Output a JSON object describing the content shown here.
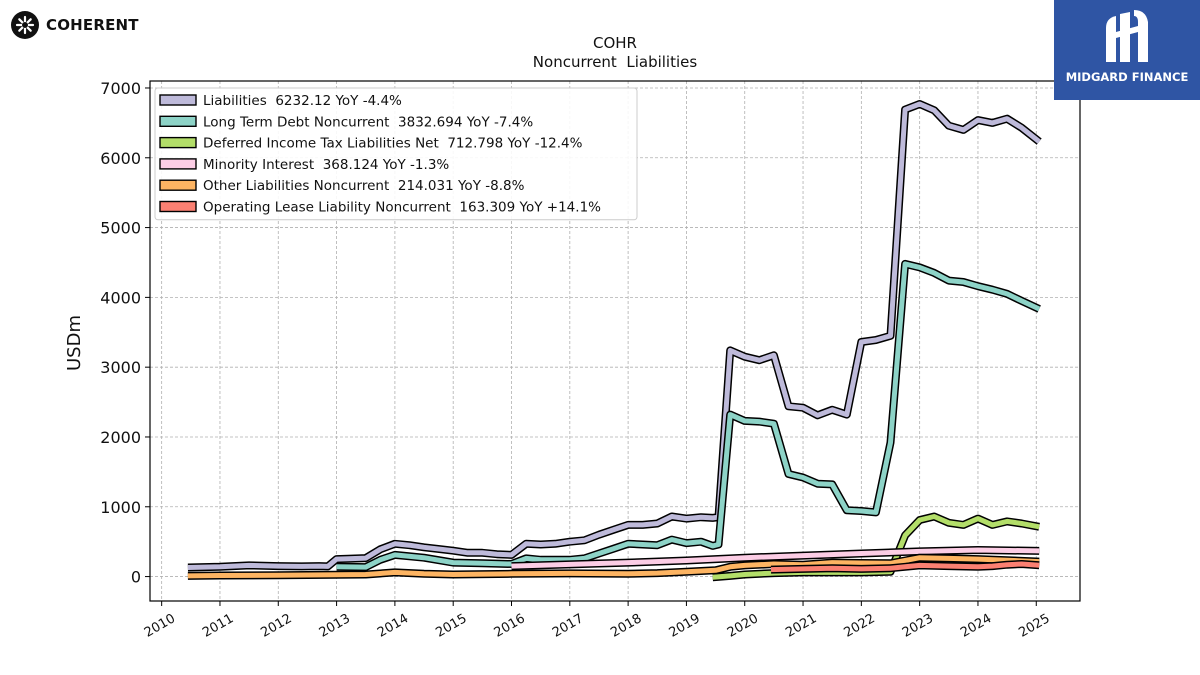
{
  "brand": {
    "left_logo_text": "COHERENT",
    "right_logo_text": "MIDGARD FINANCE",
    "right_bg": "#2f55a4"
  },
  "chart_data": {
    "type": "line",
    "title": "COHR",
    "subtitle": "Noncurrent  Liabilities",
    "ylabel": "USDm",
    "xlabel": "",
    "xlim": [
      2009.8,
      2025.75
    ],
    "ylim": [
      -350,
      7100
    ],
    "yticks": [
      0,
      1000,
      2000,
      3000,
      4000,
      5000,
      6000,
      7000
    ],
    "xticks": [
      2010,
      2011,
      2012,
      2013,
      2014,
      2015,
      2016,
      2017,
      2018,
      2019,
      2020,
      2021,
      2022,
      2023,
      2024,
      2025
    ],
    "grid": true,
    "legend_position": "top-left",
    "series": [
      {
        "name": "Liabilities",
        "legend_label": "Liabilities  6232.12 YoY -4.4%",
        "color": "#bebada",
        "points": [
          [
            2010.45,
            130
          ],
          [
            2011.0,
            140
          ],
          [
            2011.5,
            160
          ],
          [
            2012.0,
            150
          ],
          [
            2012.4,
            145
          ],
          [
            2012.7,
            150
          ],
          [
            2012.85,
            145
          ],
          [
            2013.0,
            250
          ],
          [
            2013.2,
            255
          ],
          [
            2013.5,
            265
          ],
          [
            2013.75,
            390
          ],
          [
            2014.0,
            470
          ],
          [
            2014.25,
            450
          ],
          [
            2014.5,
            420
          ],
          [
            2014.8,
            390
          ],
          [
            2015.0,
            370
          ],
          [
            2015.25,
            340
          ],
          [
            2015.5,
            340
          ],
          [
            2015.75,
            320
          ],
          [
            2016.0,
            310
          ],
          [
            2016.25,
            470
          ],
          [
            2016.5,
            460
          ],
          [
            2016.75,
            470
          ],
          [
            2017.0,
            500
          ],
          [
            2017.25,
            520
          ],
          [
            2017.5,
            600
          ],
          [
            2017.75,
            670
          ],
          [
            2018.0,
            740
          ],
          [
            2018.25,
            740
          ],
          [
            2018.5,
            760
          ],
          [
            2018.75,
            860
          ],
          [
            2019.0,
            830
          ],
          [
            2019.25,
            850
          ],
          [
            2019.45,
            840
          ],
          [
            2019.55,
            850
          ],
          [
            2019.75,
            3240
          ],
          [
            2020.0,
            3150
          ],
          [
            2020.25,
            3100
          ],
          [
            2020.5,
            3170
          ],
          [
            2020.75,
            2440
          ],
          [
            2021.0,
            2420
          ],
          [
            2021.25,
            2310
          ],
          [
            2021.5,
            2390
          ],
          [
            2021.75,
            2320
          ],
          [
            2022.0,
            3360
          ],
          [
            2022.25,
            3390
          ],
          [
            2022.5,
            3450
          ],
          [
            2022.75,
            6690
          ],
          [
            2023.0,
            6770
          ],
          [
            2023.25,
            6680
          ],
          [
            2023.5,
            6460
          ],
          [
            2023.75,
            6400
          ],
          [
            2024.0,
            6540
          ],
          [
            2024.25,
            6500
          ],
          [
            2024.5,
            6560
          ],
          [
            2024.75,
            6430
          ],
          [
            2025.05,
            6232
          ]
        ]
      },
      {
        "name": "Long Term Debt Noncurrent",
        "legend_label": "Long Term Debt Noncurrent  3832.694 YoY -7.4%",
        "color": "#8dd3c7",
        "points": [
          [
            2013.0,
            140
          ],
          [
            2013.5,
            135
          ],
          [
            2013.75,
            240
          ],
          [
            2014.0,
            310
          ],
          [
            2014.5,
            270
          ],
          [
            2015.0,
            200
          ],
          [
            2015.5,
            190
          ],
          [
            2016.0,
            180
          ],
          [
            2016.25,
            260
          ],
          [
            2016.5,
            240
          ],
          [
            2017.0,
            240
          ],
          [
            2017.25,
            260
          ],
          [
            2017.5,
            330
          ],
          [
            2017.75,
            400
          ],
          [
            2018.0,
            470
          ],
          [
            2018.25,
            460
          ],
          [
            2018.5,
            450
          ],
          [
            2018.75,
            530
          ],
          [
            2019.0,
            480
          ],
          [
            2019.25,
            500
          ],
          [
            2019.45,
            440
          ],
          [
            2019.55,
            460
          ],
          [
            2019.75,
            2320
          ],
          [
            2020.0,
            2230
          ],
          [
            2020.25,
            2220
          ],
          [
            2020.5,
            2190
          ],
          [
            2020.75,
            1470
          ],
          [
            2021.0,
            1420
          ],
          [
            2021.25,
            1330
          ],
          [
            2021.5,
            1320
          ],
          [
            2021.75,
            950
          ],
          [
            2022.0,
            940
          ],
          [
            2022.25,
            920
          ],
          [
            2022.5,
            1920
          ],
          [
            2022.75,
            4480
          ],
          [
            2023.0,
            4430
          ],
          [
            2023.25,
            4350
          ],
          [
            2023.5,
            4240
          ],
          [
            2023.75,
            4220
          ],
          [
            2024.0,
            4160
          ],
          [
            2024.25,
            4110
          ],
          [
            2024.5,
            4050
          ],
          [
            2024.75,
            3950
          ],
          [
            2025.05,
            3833
          ]
        ]
      },
      {
        "name": "Deferred Income Tax Liabilities Net",
        "legend_label": "Deferred Income Tax Liabilities Net  712.798 YoY -12.4%",
        "color": "#b3de69",
        "points": [
          [
            2019.45,
            -10
          ],
          [
            2019.75,
            10
          ],
          [
            2020.0,
            30
          ],
          [
            2020.5,
            50
          ],
          [
            2021.0,
            60
          ],
          [
            2021.5,
            60
          ],
          [
            2022.0,
            60
          ],
          [
            2022.5,
            70
          ],
          [
            2022.75,
            590
          ],
          [
            2023.0,
            810
          ],
          [
            2023.25,
            860
          ],
          [
            2023.5,
            770
          ],
          [
            2023.75,
            740
          ],
          [
            2024.0,
            830
          ],
          [
            2024.25,
            740
          ],
          [
            2024.5,
            790
          ],
          [
            2024.75,
            760
          ],
          [
            2025.05,
            713
          ]
        ]
      },
      {
        "name": "Minority Interest",
        "legend_label": "Minority Interest  368.124 YoY -1.3%",
        "color": "#fccde5",
        "points": [
          [
            2016.0,
            150
          ],
          [
            2017.0,
            175
          ],
          [
            2018.0,
            200
          ],
          [
            2019.0,
            230
          ],
          [
            2020.0,
            270
          ],
          [
            2021.0,
            300
          ],
          [
            2022.0,
            330
          ],
          [
            2023.0,
            360
          ],
          [
            2024.0,
            380
          ],
          [
            2025.05,
            368
          ]
        ]
      },
      {
        "name": "Other Liabilities Noncurrent",
        "legend_label": "Other Liabilities Noncurrent  214.031 YoY -8.8%",
        "color": "#fdb462",
        "points": [
          [
            2010.45,
            10
          ],
          [
            2011.0,
            15
          ],
          [
            2012.0,
            20
          ],
          [
            2013.0,
            25
          ],
          [
            2013.5,
            30
          ],
          [
            2014.0,
            60
          ],
          [
            2014.5,
            40
          ],
          [
            2015.0,
            30
          ],
          [
            2016.0,
            40
          ],
          [
            2017.0,
            45
          ],
          [
            2018.0,
            40
          ],
          [
            2018.5,
            50
          ],
          [
            2019.0,
            70
          ],
          [
            2019.5,
            90
          ],
          [
            2019.75,
            140
          ],
          [
            2020.0,
            160
          ],
          [
            2020.5,
            180
          ],
          [
            2021.0,
            170
          ],
          [
            2021.5,
            200
          ],
          [
            2022.0,
            195
          ],
          [
            2022.5,
            190
          ],
          [
            2022.75,
            230
          ],
          [
            2023.0,
            270
          ],
          [
            2023.5,
            260
          ],
          [
            2024.0,
            250
          ],
          [
            2024.5,
            235
          ],
          [
            2025.05,
            214
          ]
        ]
      },
      {
        "name": "Operating Lease Liability Noncurrent",
        "legend_label": "Operating Lease Liability Noncurrent  163.309 YoY +14.1%",
        "color": "#fb8072",
        "points": [
          [
            2020.45,
            100
          ],
          [
            2021.0,
            110
          ],
          [
            2021.5,
            120
          ],
          [
            2022.0,
            110
          ],
          [
            2022.5,
            120
          ],
          [
            2022.75,
            140
          ],
          [
            2023.0,
            160
          ],
          [
            2023.5,
            150
          ],
          [
            2024.0,
            140
          ],
          [
            2024.25,
            150
          ],
          [
            2024.5,
            170
          ],
          [
            2024.75,
            180
          ],
          [
            2025.05,
            163
          ]
        ]
      }
    ]
  }
}
